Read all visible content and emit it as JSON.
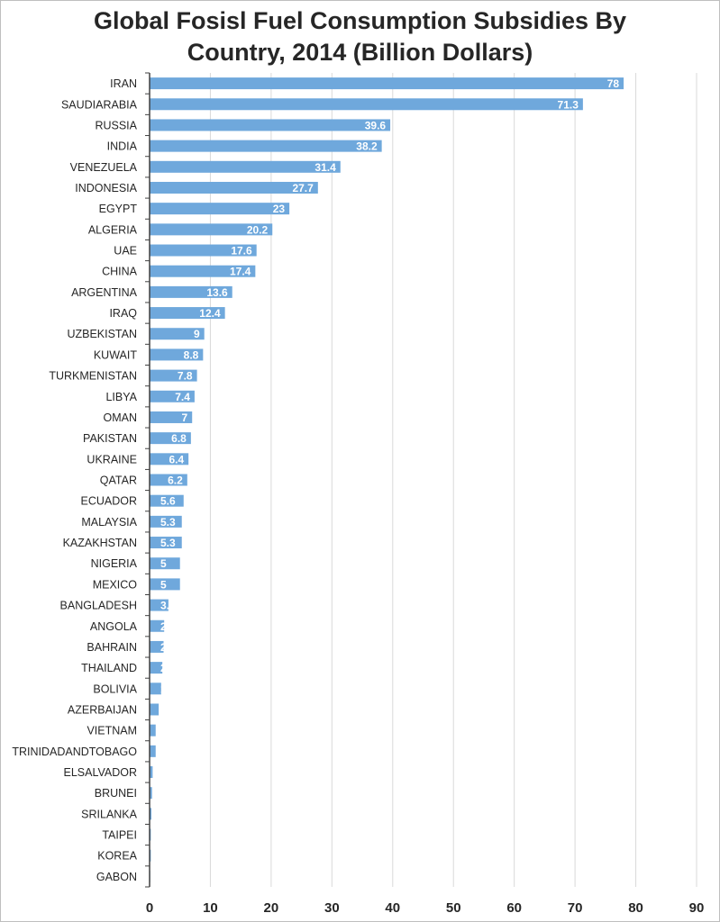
{
  "chart_data": {
    "type": "bar",
    "orientation": "horizontal",
    "title_line1": "Global Fosisl Fuel Consumption Subsidies By",
    "title_line2": "Country, 2014 (Billion Dollars)",
    "xlabel": "",
    "ylabel": "",
    "xlim": [
      0,
      90
    ],
    "xticks": [
      "0",
      "10",
      "20",
      "30",
      "40",
      "50",
      "60",
      "70",
      "80",
      "90"
    ],
    "grid": true,
    "bar_color": "#6fa8dc",
    "categories": [
      "IRAN",
      "SAUDIARABIA",
      "RUSSIA",
      "INDIA",
      "VENEZUELA",
      "INDONESIA",
      "EGYPT",
      "ALGERIA",
      "UAE",
      "CHINA",
      "ARGENTINA",
      "IRAQ",
      "UZBEKISTAN",
      "KUWAIT",
      "TURKMENISTAN",
      "LIBYA",
      "OMAN",
      "PAKISTAN",
      "UKRAINE",
      "QATAR",
      "ECUADOR",
      "MALAYSIA",
      "KAZAKHSTAN",
      "NIGERIA",
      "MEXICO",
      "BANGLADESH",
      "ANGOLA",
      "BAHRAIN",
      "THAILAND",
      "BOLIVIA",
      "AZERBAIJAN",
      "VIETNAM",
      "TRINIDADANDTOBAGO",
      "ELSALVADOR",
      "BRUNEI",
      "SRILANKA",
      "TAIPEI",
      "KOREA",
      "GABON"
    ],
    "values": [
      78,
      71.3,
      39.6,
      38.2,
      31.4,
      27.7,
      23,
      20.2,
      17.6,
      17.4,
      13.6,
      12.4,
      9,
      8.8,
      7.8,
      7.4,
      7,
      6.8,
      6.4,
      6.2,
      5.6,
      5.3,
      5.3,
      5,
      5,
      3.1,
      2.4,
      2.3,
      2.1,
      1.9,
      1.5,
      1,
      1,
      0.5,
      0.4,
      0.3,
      0.2,
      0.2,
      0.1
    ],
    "value_labels": [
      "78",
      "71.3",
      "39.6",
      "38.2",
      "31.4",
      "27.7",
      "23",
      "20.2",
      "17.6",
      "17.4",
      "13.6",
      "12.4",
      "9",
      "8.8",
      "7.8",
      "7.4",
      "7",
      "6.8",
      "6.4",
      "6.2",
      "5.6",
      "5.3",
      "5.3",
      "5",
      "5",
      "3.1",
      "2.4",
      "2.3",
      "2.1",
      "1.9",
      "1.5",
      "1",
      "1",
      "0.5",
      "0.4",
      "0.3",
      "0.2",
      "0.2",
      "0.1"
    ]
  }
}
